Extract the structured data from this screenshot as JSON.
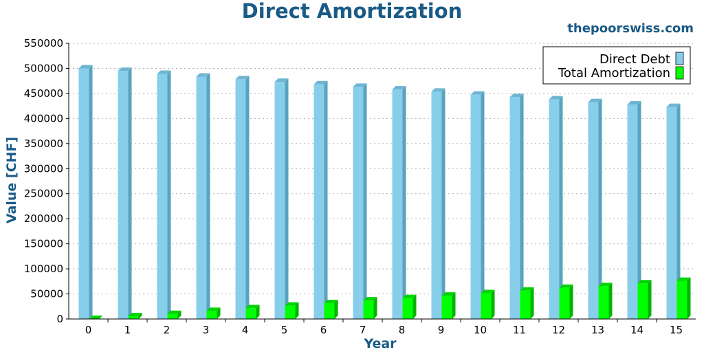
{
  "header": {
    "title": "Direct Amortization",
    "brand": "thepoorswiss.com"
  },
  "colors": {
    "title": "#1a5a86",
    "series_debt": "#87ceeb",
    "series_debt_side": "#5aa3bd",
    "series_debt_top": "#6fb5d3",
    "series_amort": "#00ff00",
    "series_amort_side": "#00b400",
    "series_amort_top": "#00d400",
    "grid": "#b0b0b0"
  },
  "chart_data": {
    "type": "bar",
    "title": "Direct Amortization",
    "xlabel": "Year",
    "ylabel": "Value [CHF]",
    "categories": [
      "0",
      "1",
      "2",
      "3",
      "4",
      "5",
      "6",
      "7",
      "8",
      "9",
      "10",
      "11",
      "12",
      "13",
      "14",
      "15"
    ],
    "ylim": [
      0,
      550000
    ],
    "yticks": [
      "0",
      "50000",
      "100000",
      "150000",
      "200000",
      "250000",
      "300000",
      "350000",
      "400000",
      "450000",
      "500000",
      "550000"
    ],
    "grid": true,
    "legend_position": "top-right",
    "series": [
      {
        "name": "Direct Debt",
        "values": [
          500000,
          494800,
          489000,
          483500,
          478200,
          473000,
          468000,
          463000,
          458000,
          453500,
          447500,
          442500,
          438000,
          432500,
          428000,
          423000
        ]
      },
      {
        "name": "Total Amortization",
        "values": [
          0,
          5500,
          10000,
          16000,
          21500,
          26500,
          31500,
          36800,
          41600,
          46400,
          51500,
          56500,
          62000,
          65500,
          71000,
          76000
        ]
      }
    ]
  }
}
